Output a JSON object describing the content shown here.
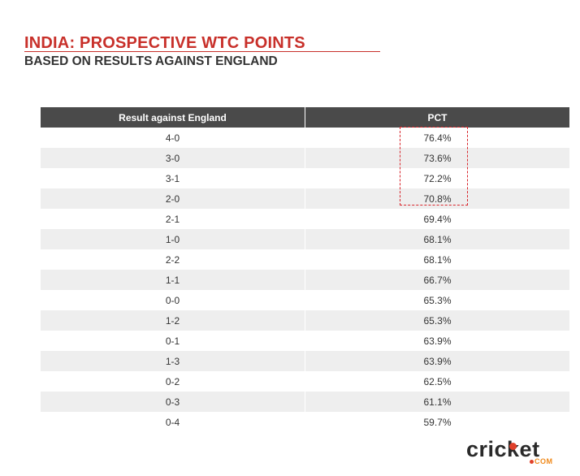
{
  "title": "INDIA: PROSPECTIVE WTC POINTS",
  "subtitle": "BASED ON RESULTS AGAINST ENGLAND",
  "chart_data": {
    "type": "table",
    "columns": [
      "Result against England",
      "PCT"
    ],
    "rows": [
      [
        "4-0",
        "76.4%"
      ],
      [
        "3-0",
        "73.6%"
      ],
      [
        "3-1",
        "72.2%"
      ],
      [
        "2-0",
        "70.8%"
      ],
      [
        "2-1",
        "69.4%"
      ],
      [
        "1-0",
        "68.1%"
      ],
      [
        "2-2",
        "68.1%"
      ],
      [
        "1-1",
        "66.7%"
      ],
      [
        "0-0",
        "65.3%"
      ],
      [
        "1-2",
        "65.3%"
      ],
      [
        "0-1",
        "63.9%"
      ],
      [
        "1-3",
        "63.9%"
      ],
      [
        "0-2",
        "62.5%"
      ],
      [
        "0-3",
        "61.1%"
      ],
      [
        "0-4",
        "59.7%"
      ]
    ],
    "highlighted_rows": [
      0,
      1,
      2,
      3
    ],
    "colors": {
      "title": "#c8302a",
      "header_bg": "#4a4a4a",
      "alt_row_bg": "#eeeeee",
      "highlight_border": "#d9262c"
    }
  },
  "logo": {
    "word": "cricket",
    "suffix": "COM"
  }
}
